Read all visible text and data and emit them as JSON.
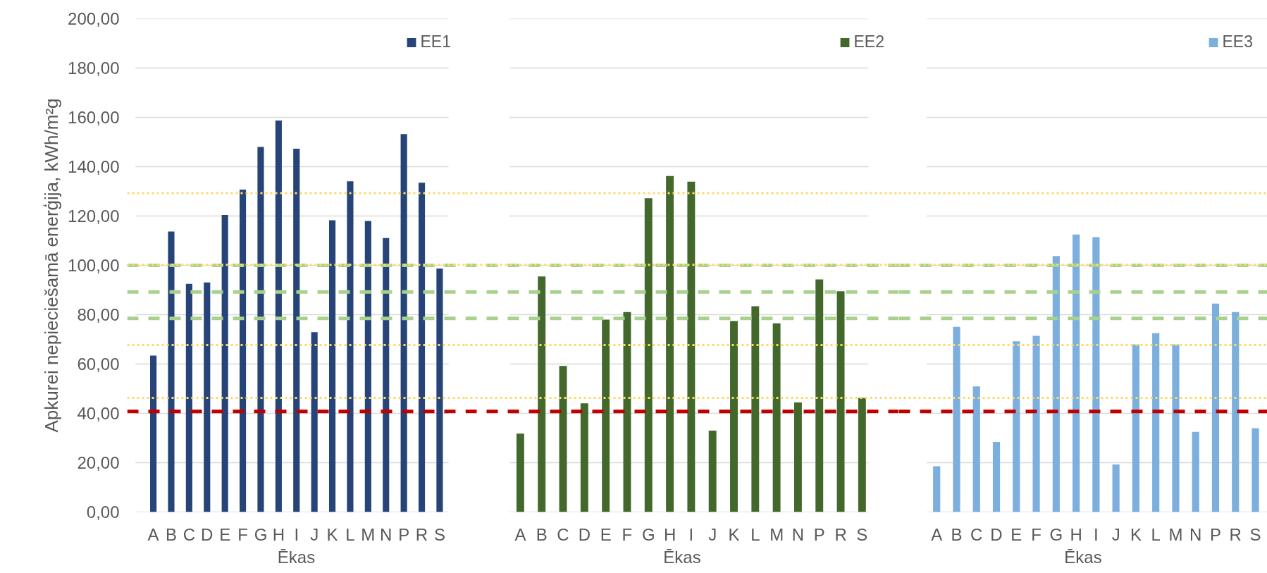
{
  "chart_data": [
    {
      "type": "bar",
      "xlabel": "Ēkas",
      "ylabel": "Apkurei nepieciešamā enerģija, kWh/m²g",
      "categories": [
        "A",
        "B",
        "C",
        "D",
        "E",
        "F",
        "G",
        "H",
        "I",
        "J",
        "K",
        "L",
        "M",
        "N",
        "P",
        "R",
        "S"
      ],
      "series": [
        {
          "name": "EE1",
          "color": "#264478",
          "values": [
            63.4,
            113.7,
            92.5,
            93.1,
            120.4,
            130.7,
            148.0,
            158.7,
            147.3,
            72.9,
            118.3,
            134.1,
            118.0,
            111.1,
            153.2,
            133.5,
            98.7
          ]
        }
      ],
      "ylim": [
        0,
        200
      ],
      "yticks": [
        {
          "value": 0,
          "label": "0,00"
        },
        {
          "value": 20,
          "label": "20,00"
        },
        {
          "value": 40,
          "label": "40,00"
        },
        {
          "value": 60,
          "label": "60,00"
        },
        {
          "value": 80,
          "label": "80,00"
        },
        {
          "value": 100,
          "label": "100,00"
        },
        {
          "value": 120,
          "label": "120,00"
        },
        {
          "value": 140,
          "label": "140,00"
        },
        {
          "value": 160,
          "label": "160,00"
        },
        {
          "value": 180,
          "label": "180,00"
        },
        {
          "value": 200,
          "label": "200,00"
        }
      ],
      "grid": "y",
      "legend": "top right",
      "ref_lines": [
        {
          "axis": "y",
          "value": 129.3,
          "color": "#ffd966",
          "line_style": "dotted"
        },
        {
          "axis": "y",
          "value": 100,
          "color": "#a9d18e",
          "line_style": "dashed"
        },
        {
          "axis": "y",
          "value": 100.2,
          "color": "#ffd966",
          "line_style": "dotted"
        },
        {
          "axis": "y",
          "value": 89.2,
          "color": "#a9d18e",
          "line_style": "dashed"
        },
        {
          "axis": "y",
          "value": 78.5,
          "color": "#a9d18e",
          "line_style": "dashed"
        },
        {
          "axis": "y",
          "value": 67.7,
          "color": "#ffd966",
          "line_style": "dotted"
        },
        {
          "axis": "y",
          "value": 46.3,
          "color": "#ffd966",
          "line_style": "dotted"
        },
        {
          "axis": "y",
          "value": 40.8,
          "color": "#c00000",
          "line_style": "dashed"
        }
      ]
    },
    {
      "type": "bar",
      "xlabel": "Ēkas",
      "categories": [
        "A",
        "B",
        "C",
        "D",
        "E",
        "F",
        "G",
        "H",
        "I",
        "J",
        "K",
        "L",
        "M",
        "N",
        "P",
        "R",
        "S"
      ],
      "series": [
        {
          "name": "EE2",
          "color": "#43682b",
          "values": [
            31.8,
            95.5,
            59.2,
            44.1,
            78.0,
            81.1,
            127.2,
            136.2,
            133.9,
            33.0,
            77.4,
            83.4,
            76.5,
            44.4,
            94.3,
            89.5,
            46.3
          ]
        }
      ],
      "ylim": [
        0,
        200
      ],
      "yticks": [
        {
          "value": 0,
          "label": null
        },
        {
          "value": 20,
          "label": null
        },
        {
          "value": 40,
          "label": null
        },
        {
          "value": 60,
          "label": null
        },
        {
          "value": 80,
          "label": null
        },
        {
          "value": 100,
          "label": null
        },
        {
          "value": 120,
          "label": null
        },
        {
          "value": 140,
          "label": null
        },
        {
          "value": 160,
          "label": null
        },
        {
          "value": 180,
          "label": null
        },
        {
          "value": 200,
          "label": null
        }
      ],
      "tick_labels": "x",
      "grid": "y",
      "legend": "top right",
      "ref_lines": [
        {
          "axis": "y",
          "value": 129.3,
          "color": "#ffd966",
          "line_style": "dotted"
        },
        {
          "axis": "y",
          "value": 100,
          "color": "#a9d18e",
          "line_style": "dashed"
        },
        {
          "axis": "y",
          "value": 100.2,
          "color": "#ffd966",
          "line_style": "dotted"
        },
        {
          "axis": "y",
          "value": 89.2,
          "color": "#a9d18e",
          "line_style": "dashed"
        },
        {
          "axis": "y",
          "value": 78.5,
          "color": "#a9d18e",
          "line_style": "dashed"
        },
        {
          "axis": "y",
          "value": 67.7,
          "color": "#ffd966",
          "line_style": "dotted"
        },
        {
          "axis": "y",
          "value": 46.3,
          "color": "#ffd966",
          "line_style": "dotted"
        },
        {
          "axis": "y",
          "value": 40.8,
          "color": "#c00000",
          "line_style": "dashed"
        }
      ]
    },
    {
      "type": "bar",
      "xlabel": "Ēkas",
      "categories": [
        "A",
        "B",
        "C",
        "D",
        "E",
        "F",
        "G",
        "H",
        "I",
        "J",
        "K",
        "L",
        "M",
        "N",
        "P",
        "R",
        "S"
      ],
      "series": [
        {
          "name": "EE3",
          "color": "#7cafdd",
          "values": [
            18.6,
            75.1,
            50.9,
            28.4,
            69.2,
            71.4,
            103.8,
            112.5,
            111.4,
            19.3,
            67.9,
            72.5,
            67.9,
            32.5,
            84.5,
            81.1,
            34.0
          ]
        }
      ],
      "ylim": [
        0,
        200
      ],
      "yticks": [
        {
          "value": 0,
          "label": null
        },
        {
          "value": 20,
          "label": null
        },
        {
          "value": 40,
          "label": null
        },
        {
          "value": 60,
          "label": null
        },
        {
          "value": 80,
          "label": null
        },
        {
          "value": 100,
          "label": null
        },
        {
          "value": 120,
          "label": null
        },
        {
          "value": 140,
          "label": null
        },
        {
          "value": 160,
          "label": null
        },
        {
          "value": 180,
          "label": null
        },
        {
          "value": 200,
          "label": null
        }
      ],
      "tick_labels": "x",
      "grid": "y",
      "legend": "top right",
      "ref_lines": [
        {
          "axis": "y",
          "value": 129.3,
          "color": "#ffd966",
          "line_style": "dotted"
        },
        {
          "axis": "y",
          "value": 100,
          "color": "#a9d18e",
          "line_style": "dashed"
        },
        {
          "axis": "y",
          "value": 100.2,
          "color": "#ffd966",
          "line_style": "dotted"
        },
        {
          "axis": "y",
          "value": 89.2,
          "color": "#a9d18e",
          "line_style": "dashed"
        },
        {
          "axis": "y",
          "value": 78.5,
          "color": "#a9d18e",
          "line_style": "dashed"
        },
        {
          "axis": "y",
          "value": 67.7,
          "color": "#ffd966",
          "line_style": "dotted"
        },
        {
          "axis": "y",
          "value": 46.3,
          "color": "#ffd966",
          "line_style": "dotted"
        },
        {
          "axis": "y",
          "value": 40.8,
          "color": "#c00000",
          "line_style": "dashed"
        }
      ]
    }
  ]
}
